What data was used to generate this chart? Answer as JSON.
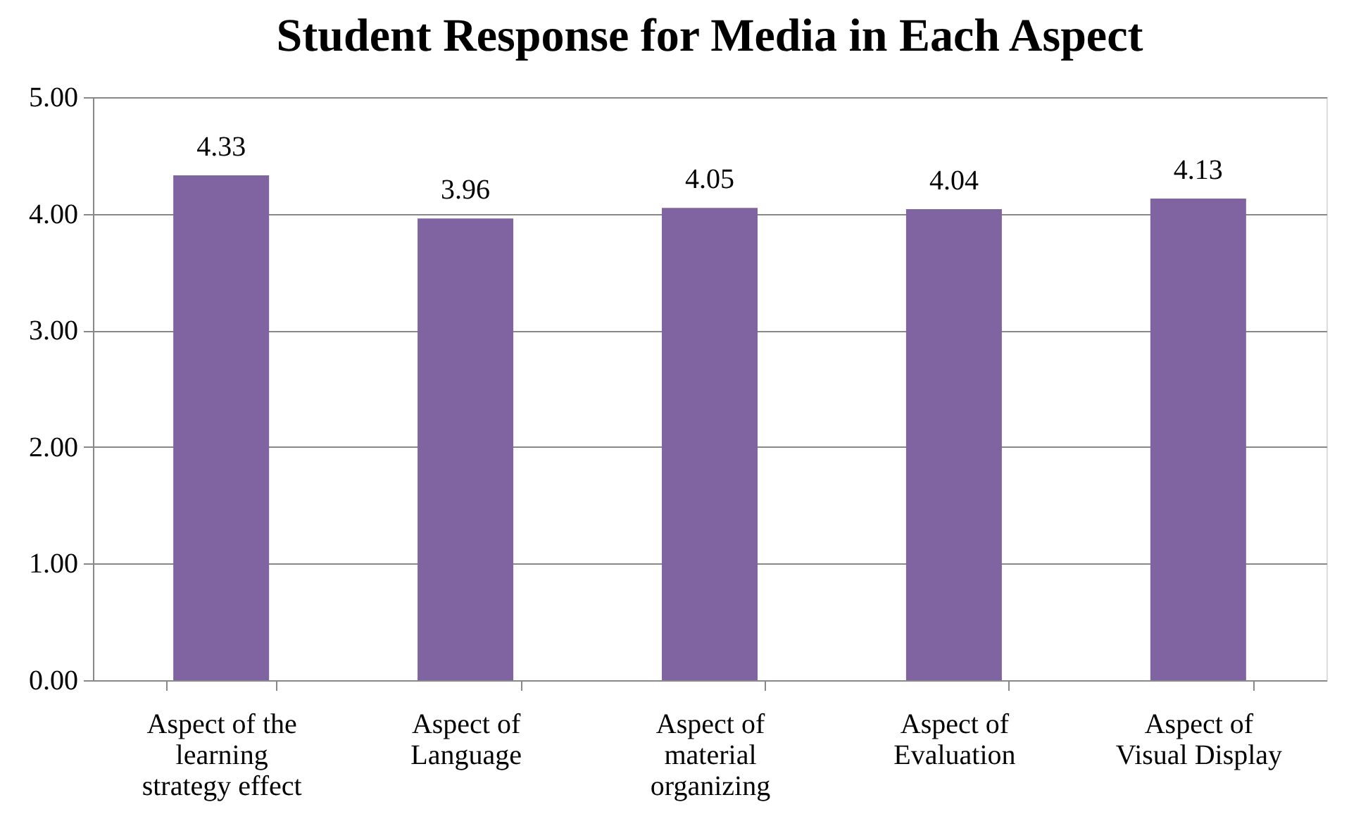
{
  "chart_data": {
    "type": "bar",
    "title": "Student Response for Media in Each Aspect",
    "categories": [
      "Aspect of the learning strategy effect",
      "Aspect of Language",
      "Aspect of material organizing",
      "Aspect of Evaluation",
      "Aspect of Visual Display"
    ],
    "values": [
      4.33,
      3.96,
      4.05,
      4.04,
      4.13
    ],
    "color": "#8064a2",
    "ylim": [
      0,
      5
    ],
    "yticks": [
      {
        "value": 0,
        "label": "0.00"
      },
      {
        "value": 1,
        "label": "1.00"
      },
      {
        "value": 2,
        "label": "2.00"
      },
      {
        "value": 3,
        "label": "3.00"
      },
      {
        "value": 4,
        "label": "4.00"
      },
      {
        "value": 5,
        "label": "5.00"
      }
    ],
    "grid": "y",
    "data_labels": true
  }
}
